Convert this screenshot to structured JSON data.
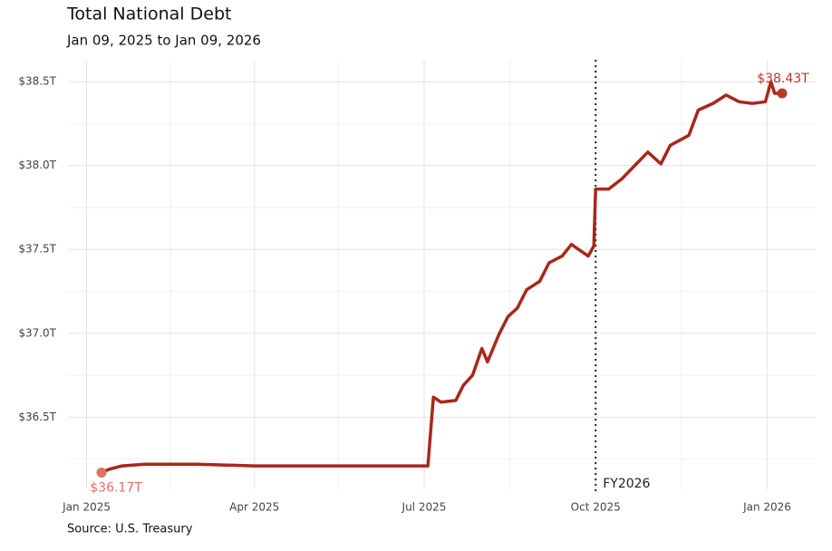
{
  "chart_data": {
    "type": "line",
    "title": "Total National Debt",
    "subtitle": "Jan 09, 2025 to Jan 09, 2026",
    "source": "Source: U.S. Treasury",
    "x": [
      "2025-01-09",
      "2025-01-13",
      "2025-01-20",
      "2025-02-01",
      "2025-03-01",
      "2025-04-01",
      "2025-05-01",
      "2025-06-01",
      "2025-07-03",
      "2025-07-06",
      "2025-07-10",
      "2025-07-18",
      "2025-07-22",
      "2025-07-27",
      "2025-08-01",
      "2025-08-04",
      "2025-08-10",
      "2025-08-15",
      "2025-08-20",
      "2025-08-25",
      "2025-09-01",
      "2025-09-06",
      "2025-09-13",
      "2025-09-18",
      "2025-09-27",
      "2025-09-30",
      "2025-10-01",
      "2025-10-08",
      "2025-10-15",
      "2025-10-22",
      "2025-10-29",
      "2025-11-05",
      "2025-11-10",
      "2025-11-20",
      "2025-11-25",
      "2025-12-03",
      "2025-12-10",
      "2025-12-17",
      "2025-12-24",
      "2025-12-31",
      "2026-01-03",
      "2026-01-05",
      "2026-01-09"
    ],
    "series": [
      {
        "color": "#a8281a",
        "values": [
          36.17,
          36.19,
          36.21,
          36.22,
          36.22,
          36.21,
          36.21,
          36.21,
          36.21,
          36.62,
          36.59,
          36.6,
          36.69,
          36.75,
          36.91,
          36.83,
          36.99,
          37.1,
          37.15,
          37.26,
          37.31,
          37.42,
          37.46,
          37.53,
          37.46,
          37.52,
          37.86,
          37.86,
          37.92,
          38.0,
          38.08,
          38.01,
          38.12,
          38.18,
          38.33,
          38.37,
          38.42,
          38.38,
          38.37,
          38.38,
          38.5,
          38.43,
          38.43
        ],
        "value_labels": [
          "$36.17T",
          null,
          null,
          null,
          null,
          null,
          null,
          null,
          null,
          null,
          null,
          null,
          null,
          null,
          null,
          null,
          null,
          null,
          null,
          null,
          null,
          null,
          null,
          null,
          null,
          null,
          null,
          null,
          null,
          null,
          null,
          null,
          null,
          null,
          null,
          null,
          null,
          null,
          null,
          null,
          null,
          null,
          "$38.43T"
        ],
        "label_colors": [
          "#e0705f",
          "#b8392a"
        ]
      }
    ],
    "xlim": [
      "2024-12-22",
      "2026-01-27"
    ],
    "xticks": [
      {
        "value": "2025-01-01",
        "label": "Jan 2025"
      },
      {
        "value": "2025-04-01",
        "label": "Apr 2025"
      },
      {
        "value": "2025-07-01",
        "label": "Jul 2025"
      },
      {
        "value": "2025-10-01",
        "label": "Oct 2025"
      },
      {
        "value": "2026-01-01",
        "label": "Jan 2026"
      }
    ],
    "xminor": [
      "2025-02-15",
      "2025-05-16",
      "2025-08-16",
      "2025-11-16"
    ],
    "ylim": [
      36.07,
      38.63
    ],
    "yticks": [
      {
        "value": 36.5,
        "label": "$36.5T"
      },
      {
        "value": 37.0,
        "label": "$37.0T"
      },
      {
        "value": 37.5,
        "label": "$37.5T"
      },
      {
        "value": 38.0,
        "label": "$38.0T"
      },
      {
        "value": 38.5,
        "label": "$38.5T"
      }
    ],
    "yminor": [
      36.25,
      36.75,
      37.25,
      37.75,
      38.25
    ],
    "grid": true,
    "annotations": [
      {
        "x": "2025-10-01",
        "label": "FY2026"
      }
    ]
  }
}
